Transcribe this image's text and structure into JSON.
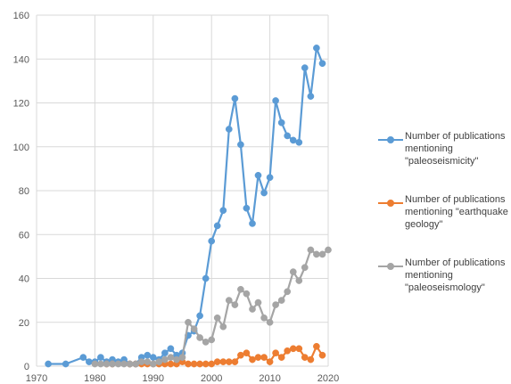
{
  "chart_data": {
    "type": "line",
    "title": "",
    "xlabel": "",
    "ylabel": "",
    "xlim": [
      1970,
      2020
    ],
    "ylim": [
      0,
      160
    ],
    "x_ticks": [
      "1970",
      "1980",
      "1990",
      "2000",
      "2010",
      "2020"
    ],
    "y_ticks": [
      "0",
      "20",
      "40",
      "60",
      "80",
      "100",
      "120",
      "140",
      "160"
    ],
    "grid": "vertical and horizontal",
    "legend_position": "right",
    "series": [
      {
        "name": "Number of publications mentioning \"paleoseismicity\"",
        "color": "#5b9bd5",
        "points": [
          [
            1972,
            1
          ],
          [
            1975,
            1
          ],
          [
            1978,
            4
          ],
          [
            1979,
            2
          ],
          [
            1980,
            2
          ],
          [
            1981,
            4
          ],
          [
            1982,
            2
          ],
          [
            1983,
            3
          ],
          [
            1984,
            2
          ],
          [
            1985,
            3
          ],
          [
            1986,
            1
          ],
          [
            1987,
            1
          ],
          [
            1988,
            4
          ],
          [
            1989,
            5
          ],
          [
            1990,
            4
          ],
          [
            1991,
            3
          ],
          [
            1992,
            6
          ],
          [
            1993,
            8
          ],
          [
            1994,
            5
          ],
          [
            1995,
            6
          ],
          [
            1996,
            14
          ],
          [
            1997,
            16
          ],
          [
            1998,
            23
          ],
          [
            1999,
            40
          ],
          [
            2000,
            57
          ],
          [
            2001,
            64
          ],
          [
            2002,
            71
          ],
          [
            2003,
            108
          ],
          [
            2004,
            122
          ],
          [
            2005,
            101
          ],
          [
            2006,
            72
          ],
          [
            2007,
            65
          ],
          [
            2008,
            87
          ],
          [
            2009,
            79
          ],
          [
            2010,
            86
          ],
          [
            2011,
            121
          ],
          [
            2012,
            111
          ],
          [
            2013,
            105
          ],
          [
            2014,
            103
          ],
          [
            2015,
            102
          ],
          [
            2016,
            136
          ],
          [
            2017,
            123
          ],
          [
            2018,
            145
          ],
          [
            2019,
            138
          ]
        ]
      },
      {
        "name": "Number of publications mentioning \"earthquake geology\"",
        "color": "#ed7d31",
        "points": [
          [
            1982,
            1
          ],
          [
            1983,
            1
          ],
          [
            1986,
            1
          ],
          [
            1987,
            1
          ],
          [
            1988,
            1
          ],
          [
            1989,
            1
          ],
          [
            1990,
            1
          ],
          [
            1991,
            1
          ],
          [
            1992,
            1
          ],
          [
            1993,
            1
          ],
          [
            1994,
            1
          ],
          [
            1995,
            2
          ],
          [
            1996,
            1
          ],
          [
            1997,
            1
          ],
          [
            1998,
            1
          ],
          [
            1999,
            1
          ],
          [
            2000,
            1
          ],
          [
            2001,
            2
          ],
          [
            2002,
            2
          ],
          [
            2003,
            2
          ],
          [
            2004,
            2
          ],
          [
            2005,
            5
          ],
          [
            2006,
            6
          ],
          [
            2007,
            3
          ],
          [
            2008,
            4
          ],
          [
            2009,
            4
          ],
          [
            2010,
            2
          ],
          [
            2011,
            6
          ],
          [
            2012,
            4
          ],
          [
            2013,
            7
          ],
          [
            2014,
            8
          ],
          [
            2015,
            8
          ],
          [
            2016,
            4
          ],
          [
            2017,
            3
          ],
          [
            2018,
            9
          ],
          [
            2019,
            5
          ]
        ]
      },
      {
        "name": "Number of publications mentioning \"paleoseismology\"",
        "color": "#a5a5a5",
        "points": [
          [
            1980,
            1
          ],
          [
            1981,
            1
          ],
          [
            1982,
            1
          ],
          [
            1983,
            1
          ],
          [
            1984,
            1
          ],
          [
            1985,
            1
          ],
          [
            1986,
            1
          ],
          [
            1987,
            1
          ],
          [
            1988,
            2
          ],
          [
            1989,
            2
          ],
          [
            1990,
            1
          ],
          [
            1991,
            2
          ],
          [
            1992,
            3
          ],
          [
            1993,
            4
          ],
          [
            1994,
            3
          ],
          [
            1995,
            4
          ],
          [
            1996,
            20
          ],
          [
            1997,
            17
          ],
          [
            1998,
            13
          ],
          [
            1999,
            11
          ],
          [
            2000,
            12
          ],
          [
            2001,
            22
          ],
          [
            2002,
            18
          ],
          [
            2003,
            30
          ],
          [
            2004,
            28
          ],
          [
            2005,
            35
          ],
          [
            2006,
            33
          ],
          [
            2007,
            26
          ],
          [
            2008,
            29
          ],
          [
            2009,
            22
          ],
          [
            2010,
            20
          ],
          [
            2011,
            28
          ],
          [
            2012,
            30
          ],
          [
            2013,
            34
          ],
          [
            2014,
            43
          ],
          [
            2015,
            39
          ],
          [
            2016,
            45
          ],
          [
            2017,
            53
          ],
          [
            2018,
            51
          ],
          [
            2019,
            51
          ],
          [
            2020,
            53
          ]
        ]
      }
    ]
  }
}
